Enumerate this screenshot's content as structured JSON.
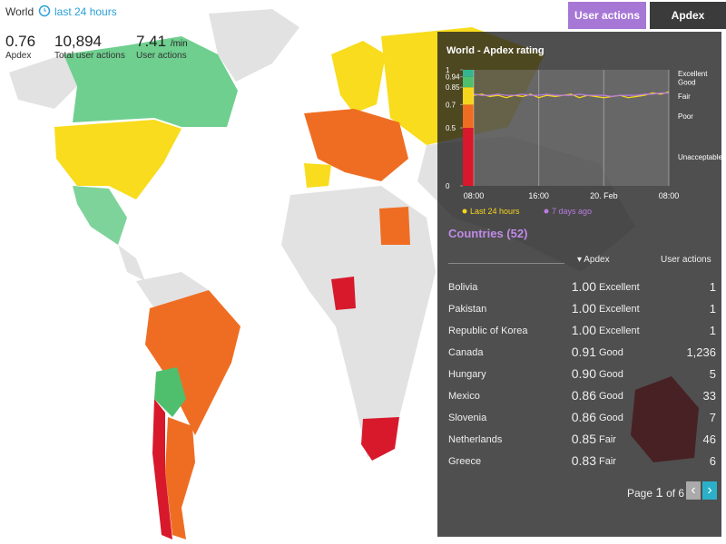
{
  "header": {
    "title": "World",
    "period": "last 24 hours"
  },
  "stats": [
    {
      "value": "0.76",
      "label": "Apdex"
    },
    {
      "value": "10,894",
      "label": "Total user actions"
    },
    {
      "value": "7.41",
      "unit": "/min",
      "label": "User actions"
    }
  ],
  "tabs": [
    "User actions",
    "Apdex"
  ],
  "apdex_chart": {
    "title": "World - Apdex rating",
    "yticks": [
      0,
      0.5,
      0.7,
      0.85,
      0.94,
      1
    ],
    "ylim": [
      0,
      1
    ],
    "zones": [
      {
        "label": "Unacceptable",
        "from": 0,
        "to": 0.5,
        "color": "#d7192b"
      },
      {
        "label": "Poor",
        "from": 0.5,
        "to": 0.7,
        "color": "#ef6d22"
      },
      {
        "label": "Fair",
        "from": 0.7,
        "to": 0.85,
        "color": "#f6d61d"
      },
      {
        "label": "Good",
        "from": 0.85,
        "to": 0.94,
        "color": "#4fbf6e"
      },
      {
        "label": "Excellent",
        "from": 0.94,
        "to": 1,
        "color": "#35b58f"
      }
    ],
    "categories": [
      "08:00",
      null,
      null,
      null,
      null,
      null,
      null,
      null,
      "16:00",
      null,
      null,
      null,
      null,
      null,
      null,
      null,
      "20. Feb",
      null,
      null,
      null,
      null,
      null,
      null,
      null,
      "08:00"
    ],
    "series": [
      {
        "name": "Last 24 hours",
        "color": "#f6d61d",
        "values": [
          0.78,
          0.79,
          0.77,
          0.78,
          0.76,
          0.78,
          0.77,
          0.79,
          0.76,
          0.78,
          0.77,
          0.78,
          0.79,
          0.76,
          0.78,
          0.77,
          0.76,
          0.77,
          0.78,
          0.76,
          0.77,
          0.78,
          0.8,
          0.79,
          0.81
        ]
      },
      {
        "name": "7 days ago",
        "color": "#b97ce0",
        "values": [
          0.79,
          0.78,
          0.78,
          0.79,
          0.78,
          0.78,
          0.79,
          0.78,
          0.78,
          0.79,
          0.78,
          0.78,
          0.78,
          0.79,
          0.78,
          0.78,
          0.78,
          0.77,
          0.78,
          0.78,
          0.78,
          0.79,
          0.79,
          0.8,
          0.8
        ]
      }
    ]
  },
  "countries": {
    "title": "Countries (52)",
    "columns": [
      "Apdex",
      "User actions"
    ],
    "rows": [
      [
        "Bolivia",
        "1.00",
        "Excellent",
        "1"
      ],
      [
        "Pakistan",
        "1.00",
        "Excellent",
        "1"
      ],
      [
        "Republic of Korea",
        "1.00",
        "Excellent",
        "1"
      ],
      [
        "Canada",
        "0.91",
        "Good",
        "1,236"
      ],
      [
        "Hungary",
        "0.90",
        "Good",
        "5"
      ],
      [
        "Mexico",
        "0.86",
        "Good",
        "33"
      ],
      [
        "Slovenia",
        "0.86",
        "Good",
        "7"
      ],
      [
        "Netherlands",
        "0.85",
        "Fair",
        "46"
      ],
      [
        "Greece",
        "0.83",
        "Fair",
        "6"
      ]
    ],
    "pagination": {
      "label": "Page",
      "current": "1",
      "of": "of 6"
    }
  }
}
